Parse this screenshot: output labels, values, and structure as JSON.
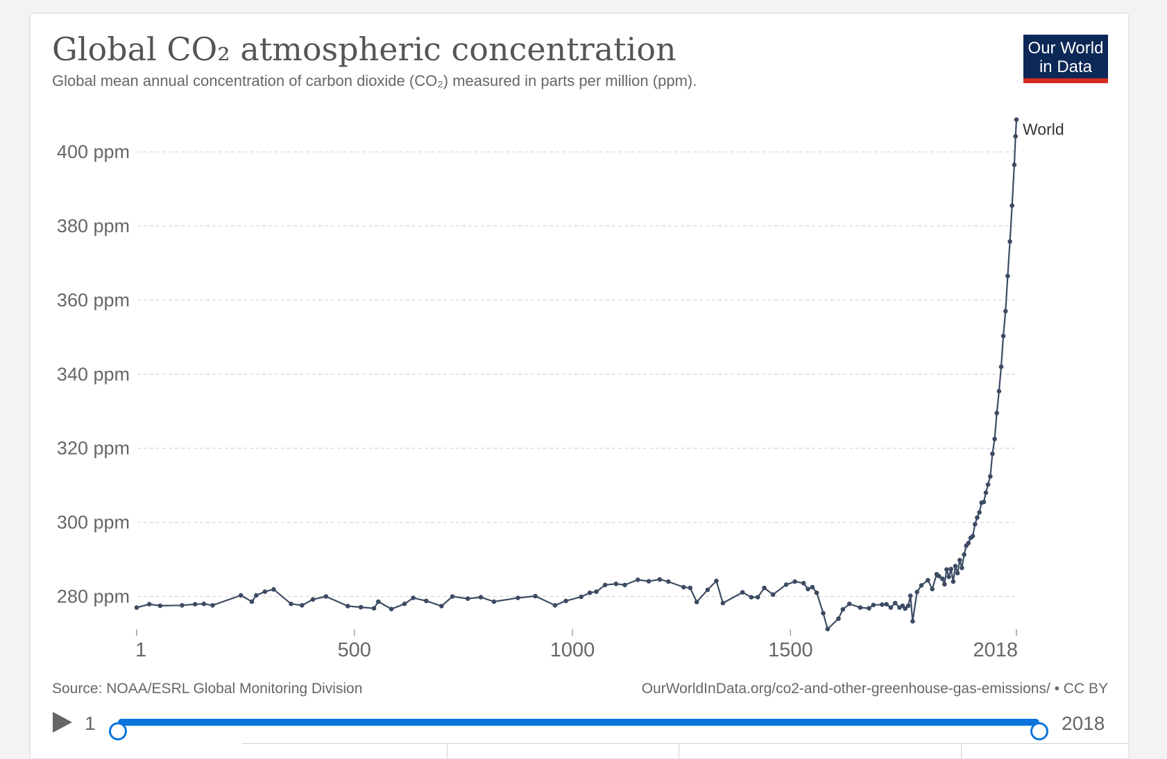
{
  "title": "Global CO₂ atmospheric concentration",
  "subtitle": "Global mean annual concentration of carbon dioxide (CO₂) measured in parts per million (ppm).",
  "logo": {
    "line1": "Our World",
    "line2": "in Data"
  },
  "source": "Source: NOAA/ESRL Global Monitoring Division",
  "url": "OurWorldInData.org/co2-and-other-greenhouse-gas-emissions/ • CC BY",
  "timeline": {
    "start_label": "1",
    "end_label": "2018",
    "start_value": 1,
    "end_value": 2018
  },
  "colors": {
    "series": "#3c4b63",
    "slider": "#0a74dc",
    "logo_bg": "#0c2856",
    "logo_accent": "#d42b21"
  },
  "chart_data": {
    "type": "line",
    "title": "Global CO₂ atmospheric concentration",
    "xlabel": "",
    "ylabel": "",
    "xlim": [
      1,
      2018
    ],
    "ylim": [
      270,
      410
    ],
    "x_ticks": [
      1,
      500,
      1000,
      1500,
      2018
    ],
    "x_tick_labels": [
      "1",
      "500",
      "1000",
      "1500",
      "2018"
    ],
    "y_ticks": [
      280,
      300,
      320,
      340,
      360,
      380,
      400
    ],
    "y_tick_labels": [
      "280 ppm",
      "300 ppm",
      "320 ppm",
      "340 ppm",
      "360 ppm",
      "380 ppm",
      "400 ppm"
    ],
    "grid": "horizontal dashed",
    "series": [
      {
        "name": "World",
        "points": [
          [
            1,
            277.0
          ],
          [
            30,
            277.9
          ],
          [
            55,
            277.5
          ],
          [
            105,
            277.6
          ],
          [
            135,
            277.9
          ],
          [
            155,
            278.0
          ],
          [
            175,
            277.6
          ],
          [
            240,
            280.3
          ],
          [
            265,
            278.6
          ],
          [
            275,
            280.3
          ],
          [
            295,
            281.3
          ],
          [
            315,
            281.9
          ],
          [
            355,
            278.0
          ],
          [
            380,
            277.6
          ],
          [
            405,
            279.2
          ],
          [
            435,
            280.0
          ],
          [
            485,
            277.4
          ],
          [
            515,
            277.1
          ],
          [
            545,
            276.8
          ],
          [
            555,
            278.6
          ],
          [
            585,
            276.6
          ],
          [
            615,
            278.0
          ],
          [
            635,
            279.6
          ],
          [
            665,
            278.8
          ],
          [
            700,
            277.4
          ],
          [
            725,
            280.0
          ],
          [
            760,
            279.4
          ],
          [
            790,
            279.8
          ],
          [
            820,
            278.6
          ],
          [
            875,
            279.6
          ],
          [
            915,
            280.1
          ],
          [
            960,
            277.6
          ],
          [
            985,
            278.8
          ],
          [
            1020,
            279.9
          ],
          [
            1040,
            281.0
          ],
          [
            1055,
            281.3
          ],
          [
            1075,
            283.1
          ],
          [
            1100,
            283.4
          ],
          [
            1120,
            283.1
          ],
          [
            1150,
            284.5
          ],
          [
            1175,
            284.1
          ],
          [
            1200,
            284.6
          ],
          [
            1220,
            284.0
          ],
          [
            1255,
            282.5
          ],
          [
            1270,
            282.3
          ],
          [
            1285,
            278.5
          ],
          [
            1310,
            281.8
          ],
          [
            1330,
            284.2
          ],
          [
            1345,
            278.2
          ],
          [
            1390,
            281.1
          ],
          [
            1410,
            279.8
          ],
          [
            1425,
            279.8
          ],
          [
            1440,
            282.3
          ],
          [
            1460,
            280.5
          ],
          [
            1490,
            283.2
          ],
          [
            1510,
            284.0
          ],
          [
            1530,
            283.6
          ],
          [
            1540,
            282.0
          ],
          [
            1550,
            282.5
          ],
          [
            1560,
            281.0
          ],
          [
            1575,
            275.5
          ],
          [
            1585,
            271.2
          ],
          [
            1610,
            274.0
          ],
          [
            1620,
            276.5
          ],
          [
            1635,
            278.0
          ],
          [
            1660,
            277.0
          ],
          [
            1680,
            276.8
          ],
          [
            1690,
            277.7
          ],
          [
            1710,
            277.8
          ],
          [
            1720,
            277.9
          ],
          [
            1730,
            277.0
          ],
          [
            1740,
            278.2
          ],
          [
            1750,
            277.0
          ],
          [
            1757,
            277.5
          ],
          [
            1763,
            276.7
          ],
          [
            1770,
            277.5
          ],
          [
            1775,
            280.2
          ],
          [
            1780,
            273.3
          ],
          [
            1790,
            281.2
          ],
          [
            1800,
            283.0
          ],
          [
            1815,
            284.4
          ],
          [
            1825,
            282.0
          ],
          [
            1835,
            286.0
          ],
          [
            1840,
            285.5
          ],
          [
            1848,
            284.8
          ],
          [
            1853,
            283.3
          ],
          [
            1858,
            287.3
          ],
          [
            1863,
            285.3
          ],
          [
            1868,
            287.4
          ],
          [
            1873,
            284.0
          ],
          [
            1878,
            288.2
          ],
          [
            1883,
            286.3
          ],
          [
            1888,
            289.8
          ],
          [
            1893,
            287.7
          ],
          [
            1898,
            291.3
          ],
          [
            1903,
            293.7
          ],
          [
            1908,
            294.4
          ],
          [
            1913,
            295.8
          ],
          [
            1918,
            296.3
          ],
          [
            1923,
            299.5
          ],
          [
            1928,
            301.3
          ],
          [
            1933,
            302.7
          ],
          [
            1938,
            305.3
          ],
          [
            1943,
            305.5
          ],
          [
            1948,
            308.0
          ],
          [
            1953,
            310.2
          ],
          [
            1958,
            312.4
          ],
          [
            1963,
            318.5
          ],
          [
            1968,
            322.5
          ],
          [
            1973,
            329.5
          ],
          [
            1978,
            335.4
          ],
          [
            1983,
            342.0
          ],
          [
            1988,
            350.3
          ],
          [
            1993,
            357.0
          ],
          [
            1998,
            366.5
          ],
          [
            2003,
            375.8
          ],
          [
            2008,
            385.5
          ],
          [
            2013,
            396.5
          ],
          [
            2016,
            404.2
          ],
          [
            2018,
            408.7
          ]
        ]
      }
    ]
  }
}
